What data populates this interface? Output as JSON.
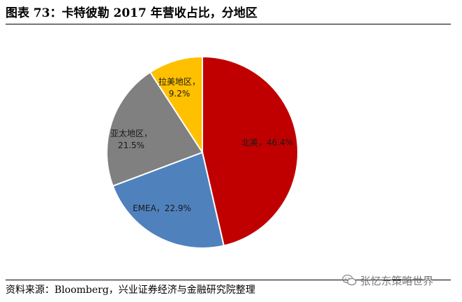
{
  "figure": {
    "title": "图表 73：卡特彼勒 2017 年营收占比，分地区",
    "source": "资料来源：Bloomberg，兴业证券经济与金融研究院整理",
    "watermark": "张忆东策略世界"
  },
  "chart_data": {
    "type": "pie",
    "slices": [
      {
        "name": "北美",
        "value": 46.4,
        "label": "北美，46.4%",
        "color": "#C00000"
      },
      {
        "name": "EMEA",
        "value": 22.9,
        "label": "EMEA，22.9%",
        "color": "#4F81BD"
      },
      {
        "name": "亚太地区",
        "value": 21.5,
        "label_lines": [
          "亚太地区，",
          "21.5%"
        ],
        "color": "#808080"
      },
      {
        "name": "拉美地区",
        "value": 9.2,
        "label_lines": [
          "拉美地区，",
          "9.2%"
        ],
        "color": "#FFC000"
      }
    ],
    "start": "12 o'clock",
    "direction": "clockwise",
    "legend": "none"
  }
}
